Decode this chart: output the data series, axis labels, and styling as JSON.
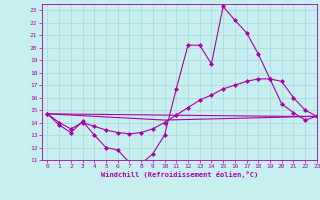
{
  "xlabel": "Windchill (Refroidissement éolien,°C)",
  "bg_color": "#c8efef",
  "line_color": "#aa00aa",
  "grid_color": "#a8d8d8",
  "xlim": [
    -0.5,
    23
  ],
  "ylim": [
    11,
    23.5
  ],
  "yticks": [
    11,
    12,
    13,
    14,
    15,
    16,
    17,
    18,
    19,
    20,
    21,
    22,
    23
  ],
  "xticks": [
    0,
    1,
    2,
    3,
    4,
    5,
    6,
    7,
    8,
    9,
    10,
    11,
    12,
    13,
    14,
    15,
    16,
    17,
    18,
    19,
    20,
    21,
    22,
    23
  ],
  "line1_x": [
    0,
    1,
    2,
    3,
    4,
    5,
    6,
    7,
    8,
    9,
    10,
    11,
    12,
    13,
    14,
    15,
    16,
    17,
    18,
    19,
    20,
    21,
    22,
    23
  ],
  "line1_y": [
    14.7,
    13.8,
    13.2,
    14.1,
    13.0,
    12.0,
    11.8,
    10.8,
    10.7,
    11.5,
    13.0,
    16.7,
    20.2,
    20.2,
    18.7,
    23.3,
    22.2,
    21.2,
    19.5,
    17.5,
    15.5,
    14.8,
    14.2,
    14.5
  ],
  "line2_x": [
    0,
    1,
    2,
    3,
    4,
    5,
    6,
    7,
    8,
    9,
    10,
    11,
    12,
    13,
    14,
    15,
    16,
    17,
    18,
    19,
    20,
    21,
    22,
    23
  ],
  "line2_y": [
    14.7,
    14.0,
    13.5,
    14.0,
    13.7,
    13.4,
    13.2,
    13.1,
    13.2,
    13.5,
    14.0,
    14.6,
    15.2,
    15.8,
    16.2,
    16.7,
    17.0,
    17.3,
    17.5,
    17.5,
    17.3,
    16.0,
    15.0,
    14.5
  ],
  "line3_x": [
    0,
    10,
    23
  ],
  "line3_y": [
    14.7,
    14.2,
    14.5
  ],
  "line4_x": [
    0,
    20,
    23
  ],
  "line4_y": [
    14.7,
    14.5,
    14.5
  ]
}
